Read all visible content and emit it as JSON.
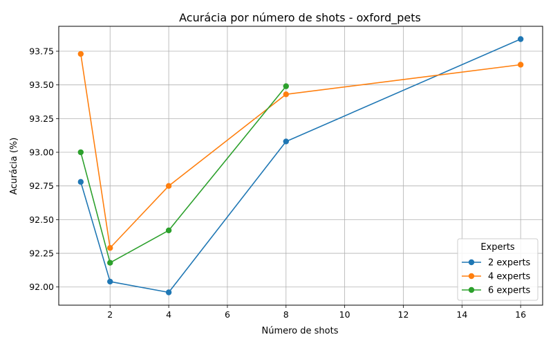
{
  "chart_data": {
    "type": "line",
    "title": "Acurácia por número de shots - oxford_pets",
    "xlabel": "Número de shots",
    "ylabel": "Acurácia (%)",
    "xlim": [
      0.25,
      16.75
    ],
    "ylim": [
      91.865,
      93.935
    ],
    "xticks": [
      2,
      4,
      6,
      8,
      10,
      12,
      14,
      16
    ],
    "xtick_labels": [
      "2",
      "4",
      "6",
      "8",
      "10",
      "12",
      "14",
      "16"
    ],
    "yticks": [
      92.0,
      92.25,
      92.5,
      92.75,
      93.0,
      93.25,
      93.5,
      93.75
    ],
    "ytick_labels": [
      "92.00",
      "92.25",
      "92.50",
      "92.75",
      "93.00",
      "93.25",
      "93.50",
      "93.75"
    ],
    "grid": true,
    "legend": {
      "title": "Experts",
      "position": "lower-right"
    },
    "series": [
      {
        "name": "2 experts",
        "color": "#1f77b4",
        "x": [
          1,
          2,
          4,
          8,
          16
        ],
        "y": [
          92.78,
          92.04,
          91.96,
          93.08,
          93.84
        ]
      },
      {
        "name": "4 experts",
        "color": "#ff7f0e",
        "x": [
          1,
          2,
          4,
          8,
          16
        ],
        "y": [
          93.73,
          92.29,
          92.75,
          93.43,
          93.65
        ]
      },
      {
        "name": "6 experts",
        "color": "#2ca02c",
        "x": [
          1,
          2,
          4,
          8
        ],
        "y": [
          93.0,
          92.18,
          92.42,
          93.49
        ]
      }
    ]
  }
}
